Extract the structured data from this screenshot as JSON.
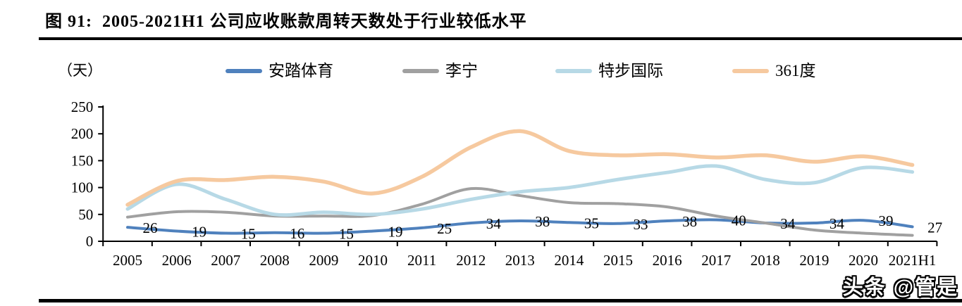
{
  "figure": {
    "title": "图 91:  2005-2021H1 公司应收账款周转天数处于行业较低水平",
    "unit_label": "（天）",
    "watermark": "头条 @管是"
  },
  "colors": {
    "anta_blue": "#4f81bd",
    "lining_gray": "#a0a0a0",
    "xtep_lightblue": "#b7d9e6",
    "x361_orange": "#f6c99f",
    "axis_black": "#000000"
  },
  "chart_data": {
    "type": "line",
    "title": "2005-2021H1 公司应收账款周转天数处于行业较低水平",
    "xlabel": "",
    "ylabel": "（天）",
    "ylim": [
      0,
      250
    ],
    "yticks": [
      0,
      50,
      100,
      150,
      200,
      250
    ],
    "grid": false,
    "smooth": true,
    "legend_position": "top",
    "categories": [
      "2005",
      "2006",
      "2007",
      "2008",
      "2009",
      "2010",
      "2011",
      "2012",
      "2013",
      "2014",
      "2015",
      "2016",
      "2017",
      "2018",
      "2019",
      "2020",
      "2021H1"
    ],
    "series": [
      {
        "id": "anta",
        "name": "安踏体育",
        "color": "#4f81bd",
        "data_labels": true,
        "values": [
          26,
          19,
          15,
          16,
          15,
          19,
          25,
          34,
          38,
          35,
          33,
          38,
          40,
          34,
          34,
          39,
          27
        ]
      },
      {
        "id": "lining",
        "name": "李宁",
        "color": "#a0a0a0",
        "data_labels": false,
        "values": [
          45,
          55,
          54,
          47,
          47,
          48,
          69,
          98,
          85,
          72,
          70,
          64,
          47,
          34,
          21,
          15,
          11
        ]
      },
      {
        "id": "xtep",
        "name": "特步国际",
        "color": "#b7d9e6",
        "data_labels": false,
        "values": [
          60,
          106,
          78,
          50,
          54,
          50,
          60,
          78,
          92,
          100,
          115,
          128,
          140,
          115,
          109,
          137,
          129
        ]
      },
      {
        "id": "x361",
        "name": "361度",
        "color": "#f6c99f",
        "data_labels": false,
        "values": [
          68,
          112,
          114,
          120,
          111,
          89,
          120,
          175,
          205,
          168,
          160,
          162,
          156,
          160,
          148,
          158,
          142
        ]
      }
    ]
  }
}
